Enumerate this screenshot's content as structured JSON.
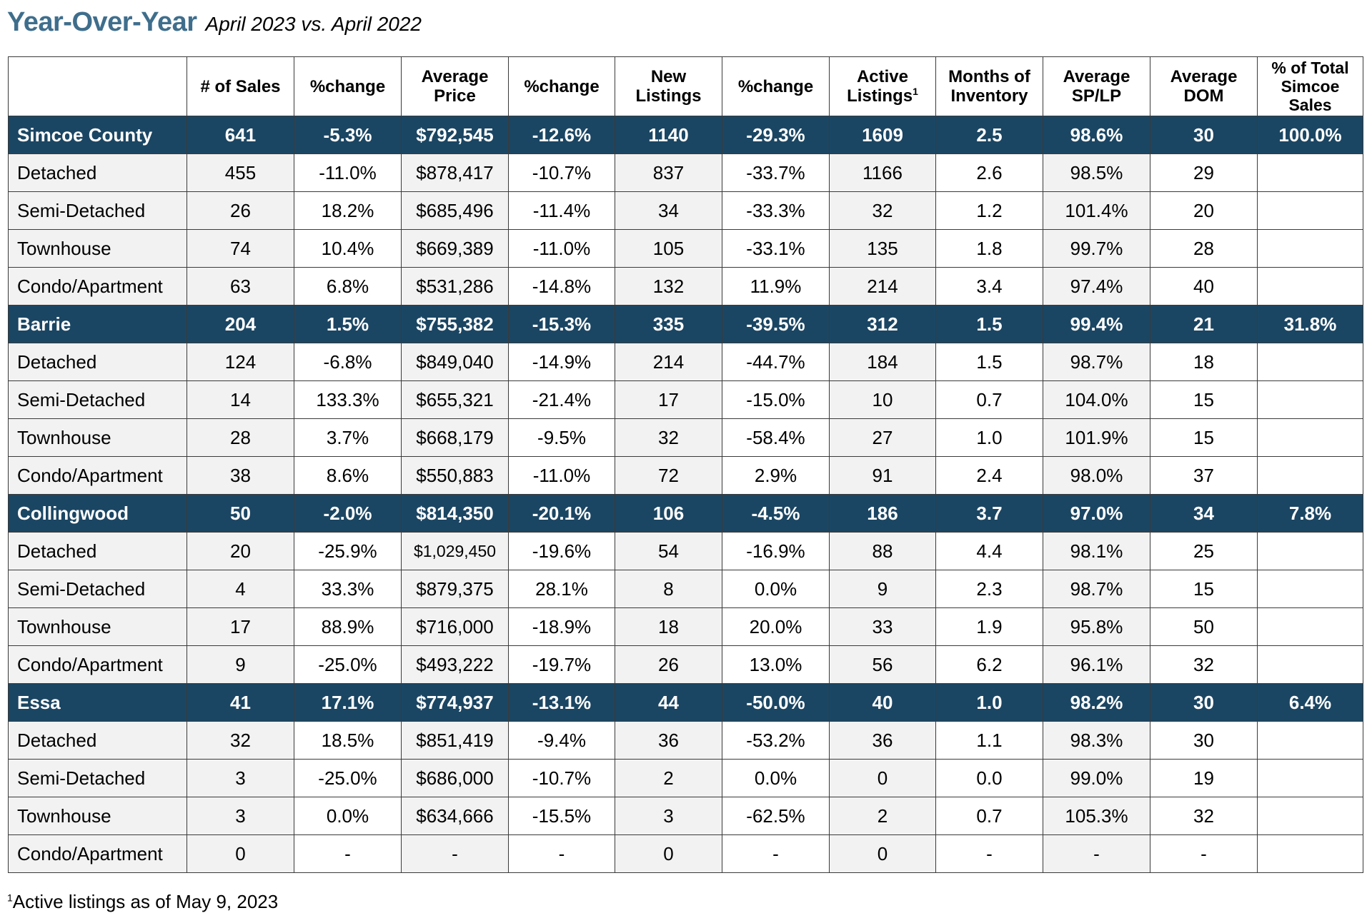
{
  "title": {
    "main": "Year-Over-Year",
    "sub": "April 2023 vs. April 2022"
  },
  "header": {
    "blank": "",
    "sales": "# of Sales",
    "change1": "%change",
    "avg_price_1": "Average",
    "avg_price_2": "Price",
    "change2": "%change",
    "new_listings_1": "New",
    "new_listings_2": "Listings",
    "change3": "%change",
    "active_1": "Active",
    "active_2": "Listings",
    "active_sup": "1",
    "months_1": "Months of",
    "months_2": "Inventory",
    "splp_1": "Average",
    "splp_2": "SP/LP",
    "dom_1": "Average",
    "dom_2": "DOM",
    "pct_1": "% of Total",
    "pct_2": "Simcoe",
    "pct_3": "Sales"
  },
  "rows": [
    {
      "type": "region",
      "cells": [
        "Simcoe County",
        "641",
        "-5.3%",
        "$792,545",
        "-12.6%",
        "1140",
        "-29.3%",
        "1609",
        "2.5",
        "98.6%",
        "30",
        "100.0%"
      ]
    },
    {
      "type": "sub",
      "cells": [
        "Detached",
        "455",
        "-11.0%",
        "$878,417",
        "-10.7%",
        "837",
        "-33.7%",
        "1166",
        "2.6",
        "98.5%",
        "29",
        ""
      ]
    },
    {
      "type": "sub",
      "cells": [
        "Semi-Detached",
        "26",
        "18.2%",
        "$685,496",
        "-11.4%",
        "34",
        "-33.3%",
        "32",
        "1.2",
        "101.4%",
        "20",
        ""
      ]
    },
    {
      "type": "sub",
      "cells": [
        "Townhouse",
        "74",
        "10.4%",
        "$669,389",
        "-11.0%",
        "105",
        "-33.1%",
        "135",
        "1.8",
        "99.7%",
        "28",
        ""
      ]
    },
    {
      "type": "sub",
      "cells": [
        "Condo/Apartment",
        "63",
        "6.8%",
        "$531,286",
        "-14.8%",
        "132",
        "11.9%",
        "214",
        "3.4",
        "97.4%",
        "40",
        ""
      ]
    },
    {
      "type": "region",
      "cells": [
        "Barrie",
        "204",
        "1.5%",
        "$755,382",
        "-15.3%",
        "335",
        "-39.5%",
        "312",
        "1.5",
        "99.4%",
        "21",
        "31.8%"
      ]
    },
    {
      "type": "sub",
      "cells": [
        "Detached",
        "124",
        "-6.8%",
        "$849,040",
        "-14.9%",
        "214",
        "-44.7%",
        "184",
        "1.5",
        "98.7%",
        "18",
        ""
      ]
    },
    {
      "type": "sub",
      "cells": [
        "Semi-Detached",
        "14",
        "133.3%",
        "$655,321",
        "-21.4%",
        "17",
        "-15.0%",
        "10",
        "0.7",
        "104.0%",
        "15",
        ""
      ]
    },
    {
      "type": "sub",
      "cells": [
        "Townhouse",
        "28",
        "3.7%",
        "$668,179",
        "-9.5%",
        "32",
        "-58.4%",
        "27",
        "1.0",
        "101.9%",
        "15",
        ""
      ]
    },
    {
      "type": "sub",
      "cells": [
        "Condo/Apartment",
        "38",
        "8.6%",
        "$550,883",
        "-11.0%",
        "72",
        "2.9%",
        "91",
        "2.4",
        "98.0%",
        "37",
        ""
      ]
    },
    {
      "type": "region",
      "cells": [
        "Collingwood",
        "50",
        "-2.0%",
        "$814,350",
        "-20.1%",
        "106",
        "-4.5%",
        "186",
        "3.7",
        "97.0%",
        "34",
        "7.8%"
      ]
    },
    {
      "type": "sub",
      "cells": [
        "Detached",
        "20",
        "-25.9%",
        "$1,029,450",
        "-19.6%",
        "54",
        "-16.9%",
        "88",
        "4.4",
        "98.1%",
        "25",
        ""
      ]
    },
    {
      "type": "sub",
      "cells": [
        "Semi-Detached",
        "4",
        "33.3%",
        "$879,375",
        "28.1%",
        "8",
        "0.0%",
        "9",
        "2.3",
        "98.7%",
        "15",
        ""
      ]
    },
    {
      "type": "sub",
      "cells": [
        "Townhouse",
        "17",
        "88.9%",
        "$716,000",
        "-18.9%",
        "18",
        "20.0%",
        "33",
        "1.9",
        "95.8%",
        "50",
        ""
      ]
    },
    {
      "type": "sub",
      "cells": [
        "Condo/Apartment",
        "9",
        "-25.0%",
        "$493,222",
        "-19.7%",
        "26",
        "13.0%",
        "56",
        "6.2",
        "96.1%",
        "32",
        ""
      ]
    },
    {
      "type": "region",
      "cells": [
        "Essa",
        "41",
        "17.1%",
        "$774,937",
        "-13.1%",
        "44",
        "-50.0%",
        "40",
        "1.0",
        "98.2%",
        "30",
        "6.4%"
      ]
    },
    {
      "type": "sub",
      "cells": [
        "Detached",
        "32",
        "18.5%",
        "$851,419",
        "-9.4%",
        "36",
        "-53.2%",
        "36",
        "1.1",
        "98.3%",
        "30",
        ""
      ]
    },
    {
      "type": "sub",
      "cells": [
        "Semi-Detached",
        "3",
        "-25.0%",
        "$686,000",
        "-10.7%",
        "2",
        "0.0%",
        "0",
        "0.0",
        "99.0%",
        "19",
        ""
      ]
    },
    {
      "type": "sub",
      "cells": [
        "Townhouse",
        "3",
        "0.0%",
        "$634,666",
        "-15.5%",
        "3",
        "-62.5%",
        "2",
        "0.7",
        "105.3%",
        "32",
        ""
      ]
    },
    {
      "type": "sub",
      "cells": [
        "Condo/Apartment",
        "0",
        "-",
        "-",
        "-",
        "0",
        "-",
        "0",
        "-",
        "-",
        "-",
        ""
      ]
    }
  ],
  "footnote": {
    "sup": "1",
    "text": "Active listings as of May 9, 2023"
  },
  "colors": {
    "title": "#3f6e8c",
    "region_row_bg": "#1b4663",
    "shaded_col_bg": "#f2f2f2"
  }
}
